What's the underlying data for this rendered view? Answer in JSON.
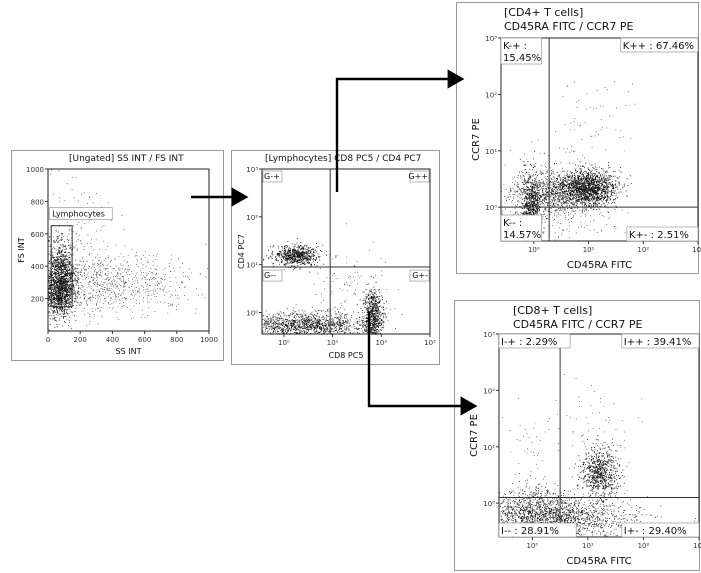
{
  "chart_data": [
    {
      "type": "scatter",
      "title": "[Ungated] SS INT / FS INT",
      "xlabel": "SS INT",
      "ylabel": "FS INT",
      "xlim": [
        0,
        1000
      ],
      "ylim": [
        0,
        1000
      ],
      "xticks": [
        "0",
        "200",
        "400",
        "600",
        "800",
        "1000"
      ],
      "yticks": [
        "200",
        "400",
        "600",
        "800",
        "1000"
      ],
      "gate": {
        "name": "Lymphocytes",
        "x_range": [
          20,
          150
        ],
        "y_range": [
          150,
          650
        ]
      },
      "populations": [
        {
          "name": "Lymphocytes",
          "x_center": 75,
          "y_center": 320
        }
      ]
    },
    {
      "type": "scatter",
      "title": "[Lymphocytes] CD8 PC5 / CD4 PC7",
      "xlabel": "CD8 PC5",
      "ylabel": "CD4 PC7",
      "scale": "log",
      "xticks": [
        "10⁰",
        "10¹",
        "10²",
        "10³"
      ],
      "yticks": [
        "10⁰",
        "10¹",
        "10²",
        "10³"
      ],
      "quadrants": [
        "G-+",
        "G++",
        "G--",
        "G+-"
      ]
    },
    {
      "type": "scatter",
      "title": "[CD4+ T cells]",
      "subtitle": "CD45RA FITC / CCR7 PE",
      "xlabel": "CD45RA FITC",
      "ylabel": "CCR7 PE",
      "scale": "log",
      "xticks": [
        "10⁰",
        "10¹",
        "10²",
        "10³"
      ],
      "yticks": [
        "10⁰",
        "10¹",
        "10²",
        "10³"
      ],
      "quadrants": [
        {
          "label": "K-+ :",
          "value": "15.45%",
          "percent": 15.45
        },
        {
          "label": "K++ :",
          "value": "67.46%",
          "percent": 67.46
        },
        {
          "label": "K-- :",
          "value": "14.57%",
          "percent": 14.57
        },
        {
          "label": "K+- :",
          "value": "2.51%",
          "percent": 2.51
        }
      ]
    },
    {
      "type": "scatter",
      "title": "[CD8+ T cells]",
      "subtitle": "CD45RA FITC / CCR7 PE",
      "xlabel": "CD45RA FITC",
      "ylabel": "CCR7 PE",
      "scale": "log",
      "xticks": [
        "10⁰",
        "10¹",
        "10²",
        "10³"
      ],
      "yticks": [
        "10⁰",
        "10¹",
        "10²",
        "10³"
      ],
      "quadrants": [
        {
          "label": "I-+ :",
          "value": "2.29%",
          "percent": 2.29
        },
        {
          "label": "I++ :",
          "value": "39.41%",
          "percent": 39.41
        },
        {
          "label": "I-- :",
          "value": "28.91%",
          "percent": 28.91
        },
        {
          "label": "I+- :",
          "value": "29.40%",
          "percent": 29.4
        }
      ]
    }
  ]
}
